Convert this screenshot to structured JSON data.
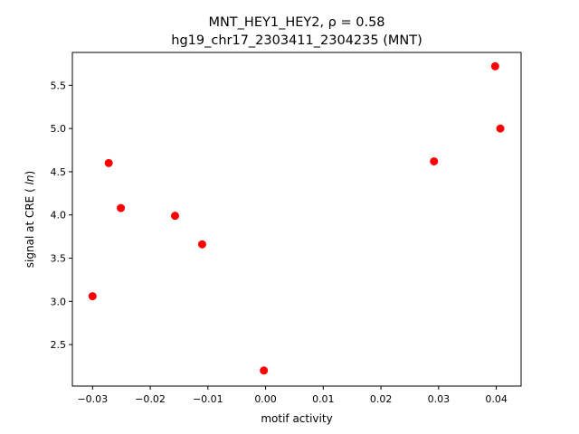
{
  "chart_data": {
    "type": "scatter",
    "title": "MNT_HEY1_HEY2, ρ = 0.58",
    "subtitle": "hg19_chr17_2303411_2304235 (MNT)",
    "xlabel": "motif activity",
    "ylabel": "signal at CRE (ln)",
    "xlim": [
      -0.0335,
      0.0443
    ],
    "ylim": [
      2.02,
      5.88
    ],
    "xticks": [
      -0.03,
      -0.02,
      -0.01,
      0.0,
      0.01,
      0.02,
      0.03,
      0.04
    ],
    "xtick_labels": [
      "−0.03",
      "−0.02",
      "−0.01",
      "0.00",
      "0.01",
      "0.02",
      "0.03",
      "0.04"
    ],
    "yticks": [
      2.5,
      3.0,
      3.5,
      4.0,
      4.5,
      5.0,
      5.5
    ],
    "ytick_labels": [
      "2.5",
      "3.0",
      "3.5",
      "4.0",
      "4.5",
      "5.0",
      "5.5"
    ],
    "grid": false,
    "legend": "none",
    "marker_color": "#ff0000",
    "points": [
      {
        "x": -0.03,
        "y": 3.06
      },
      {
        "x": -0.0272,
        "y": 4.6
      },
      {
        "x": -0.0251,
        "y": 4.08
      },
      {
        "x": -0.0157,
        "y": 3.99
      },
      {
        "x": -0.011,
        "y": 3.66
      },
      {
        "x": -0.0003,
        "y": 2.2
      },
      {
        "x": 0.0292,
        "y": 4.62
      },
      {
        "x": 0.0398,
        "y": 5.72
      },
      {
        "x": 0.0407,
        "y": 5.0
      }
    ]
  }
}
